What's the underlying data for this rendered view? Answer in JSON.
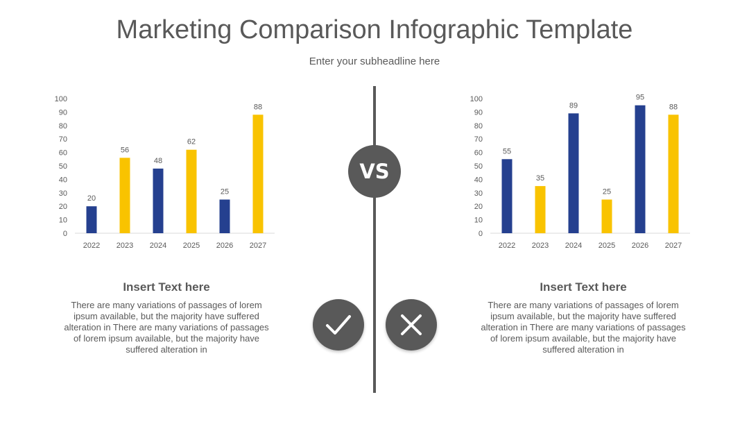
{
  "header": {
    "title": "Marketing Comparison Infographic Template",
    "subtitle": "Enter your subheadline here"
  },
  "center": {
    "vs_label": "VS",
    "divider_color": "#595959",
    "left_icon": "check-icon",
    "right_icon": "cross-icon"
  },
  "colors": {
    "blue": "#25408F",
    "yellow": "#F9C300",
    "text": "#595959"
  },
  "chart_data": [
    {
      "type": "bar",
      "categories": [
        "2022",
        "2023",
        "2024",
        "2025",
        "2026",
        "2027"
      ],
      "values": [
        20,
        56,
        48,
        62,
        25,
        88
      ],
      "bar_colors": [
        "#25408F",
        "#F9C300",
        "#25408F",
        "#F9C300",
        "#25408F",
        "#F9C300"
      ],
      "ylim": [
        0,
        100
      ],
      "yticks": [
        0,
        10,
        20,
        30,
        40,
        50,
        60,
        70,
        80,
        90,
        100
      ],
      "data_labels": true,
      "grid": false
    },
    {
      "type": "bar",
      "categories": [
        "2022",
        "2023",
        "2024",
        "2025",
        "2026",
        "2027"
      ],
      "values": [
        55,
        35,
        89,
        25,
        95,
        88
      ],
      "bar_colors": [
        "#25408F",
        "#F9C300",
        "#25408F",
        "#F9C300",
        "#25408F",
        "#F9C300"
      ],
      "ylim": [
        0,
        100
      ],
      "yticks": [
        0,
        10,
        20,
        30,
        40,
        50,
        60,
        70,
        80,
        90,
        100
      ],
      "data_labels": true,
      "grid": false
    }
  ],
  "panels": [
    {
      "heading": "Insert Text here",
      "body": "There are many variations of passages of lorem ipsum available, but the majority have suffered alteration in There are many variations of passages of lorem ipsum available, but the majority have suffered alteration in"
    },
    {
      "heading": "Insert Text here",
      "body": "There are many variations of passages of lorem ipsum available, but the majority have suffered alteration in There are many variations of passages of lorem ipsum available, but the majority have suffered alteration in"
    }
  ]
}
